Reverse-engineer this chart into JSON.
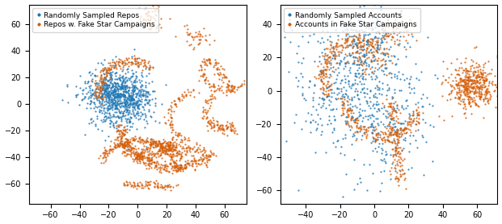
{
  "left_legend_labels": [
    "Randomly Sampled Repos",
    "Repos w. Fake Star Campaigns"
  ],
  "right_legend_labels": [
    "Randomly Sampled Accounts",
    "Accounts in Fake Star Campaigns"
  ],
  "blue_color": "#1f77b4",
  "orange_color": "#d45f0a",
  "marker_size": 2.5,
  "alpha": 0.85,
  "left_xlim": [
    -75,
    75
  ],
  "left_ylim": [
    -75,
    75
  ],
  "right_xlim": [
    -55,
    72
  ],
  "right_ylim": [
    -68,
    52
  ],
  "figsize": [
    6.21,
    2.78
  ],
  "dpi": 100
}
